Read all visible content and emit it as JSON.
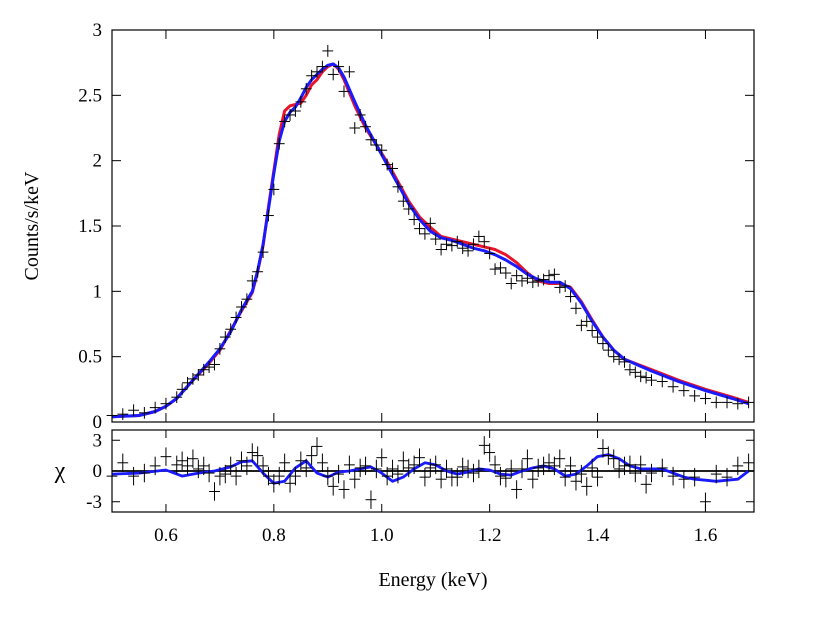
{
  "chart_data": [
    {
      "type": "line",
      "panel": "spectrum",
      "xlabel": "Energy (keV)",
      "ylabel": "Counts/s/keV",
      "xlim": [
        0.5,
        1.69
      ],
      "ylim": [
        0,
        3
      ],
      "xticks": [
        0.6,
        0.8,
        1.0,
        1.2,
        1.4,
        1.6
      ],
      "xtick_labels": [
        "0.6",
        "0.8",
        "1.0",
        "1.2",
        "1.4",
        "1.6"
      ],
      "yticks": [
        0,
        0.5,
        1,
        1.5,
        2,
        2.5,
        3
      ],
      "ytick_labels": [
        "0",
        "0.5",
        "1",
        "1.5",
        "2",
        "2.5",
        "3"
      ],
      "grid": false,
      "colors": {
        "data": "#000000",
        "model_red": "#e8142a",
        "model_blue": "#1a1aff"
      },
      "points": {
        "x": [
          0.5,
          0.52,
          0.54,
          0.56,
          0.58,
          0.6,
          0.62,
          0.63,
          0.64,
          0.65,
          0.66,
          0.67,
          0.68,
          0.69,
          0.7,
          0.71,
          0.72,
          0.73,
          0.74,
          0.75,
          0.76,
          0.77,
          0.78,
          0.79,
          0.8,
          0.81,
          0.82,
          0.83,
          0.84,
          0.85,
          0.86,
          0.87,
          0.88,
          0.89,
          0.9,
          0.91,
          0.92,
          0.93,
          0.94,
          0.95,
          0.96,
          0.97,
          0.98,
          0.99,
          1.0,
          1.01,
          1.02,
          1.03,
          1.04,
          1.05,
          1.06,
          1.07,
          1.08,
          1.09,
          1.1,
          1.11,
          1.12,
          1.13,
          1.14,
          1.15,
          1.16,
          1.17,
          1.18,
          1.19,
          1.2,
          1.21,
          1.22,
          1.23,
          1.24,
          1.25,
          1.26,
          1.27,
          1.28,
          1.29,
          1.3,
          1.31,
          1.32,
          1.33,
          1.34,
          1.35,
          1.36,
          1.37,
          1.38,
          1.39,
          1.4,
          1.41,
          1.42,
          1.43,
          1.44,
          1.45,
          1.46,
          1.47,
          1.48,
          1.49,
          1.5,
          1.52,
          1.54,
          1.56,
          1.58,
          1.6,
          1.62,
          1.64,
          1.66,
          1.68
        ],
        "y": [
          0.05,
          0.06,
          0.09,
          0.07,
          0.11,
          0.14,
          0.19,
          0.25,
          0.3,
          0.33,
          0.36,
          0.4,
          0.42,
          0.44,
          0.56,
          0.65,
          0.71,
          0.8,
          0.88,
          0.94,
          1.08,
          1.15,
          1.3,
          1.58,
          1.78,
          2.13,
          2.3,
          2.35,
          2.38,
          2.45,
          2.55,
          2.65,
          2.68,
          2.72,
          2.84,
          2.66,
          2.72,
          2.53,
          2.68,
          2.25,
          2.35,
          2.26,
          2.16,
          2.12,
          2.08,
          1.97,
          1.94,
          1.8,
          1.69,
          1.63,
          1.55,
          1.48,
          1.44,
          1.52,
          1.4,
          1.32,
          1.36,
          1.35,
          1.38,
          1.33,
          1.31,
          1.36,
          1.42,
          1.38,
          1.29,
          1.17,
          1.18,
          1.14,
          1.06,
          1.12,
          1.08,
          1.1,
          1.07,
          1.08,
          1.09,
          1.12,
          1.13,
          1.03,
          1.04,
          0.96,
          0.87,
          0.74,
          0.77,
          0.7,
          0.65,
          0.6,
          0.55,
          0.5,
          0.48,
          0.46,
          0.4,
          0.38,
          0.35,
          0.34,
          0.32,
          0.31,
          0.27,
          0.24,
          0.2,
          0.18,
          0.15,
          0.15,
          0.14,
          0.15
        ],
        "yerr": 0.045,
        "xerr": 0.01
      },
      "series": [
        {
          "color": "red",
          "x": [
            0.5,
            0.55,
            0.58,
            0.6,
            0.62,
            0.65,
            0.68,
            0.7,
            0.72,
            0.74,
            0.76,
            0.77,
            0.78,
            0.79,
            0.8,
            0.81,
            0.82,
            0.83,
            0.84,
            0.85,
            0.86,
            0.87,
            0.88,
            0.89,
            0.9,
            0.91,
            0.92,
            0.93,
            0.95,
            0.97,
            0.99,
            1.01,
            1.03,
            1.05,
            1.07,
            1.09,
            1.11,
            1.13,
            1.15,
            1.17,
            1.19,
            1.21,
            1.23,
            1.25,
            1.27,
            1.29,
            1.31,
            1.33,
            1.35,
            1.37,
            1.39,
            1.41,
            1.43,
            1.45,
            1.5,
            1.55,
            1.6,
            1.65,
            1.68
          ],
          "y": [
            0.04,
            0.05,
            0.08,
            0.12,
            0.18,
            0.32,
            0.45,
            0.55,
            0.7,
            0.85,
            0.99,
            1.15,
            1.35,
            1.65,
            1.92,
            2.2,
            2.38,
            2.42,
            2.43,
            2.44,
            2.5,
            2.58,
            2.62,
            2.68,
            2.72,
            2.74,
            2.7,
            2.62,
            2.42,
            2.25,
            2.12,
            1.99,
            1.84,
            1.69,
            1.57,
            1.49,
            1.42,
            1.4,
            1.38,
            1.36,
            1.34,
            1.32,
            1.28,
            1.22,
            1.14,
            1.08,
            1.06,
            1.06,
            1.03,
            0.92,
            0.78,
            0.65,
            0.55,
            0.48,
            0.4,
            0.32,
            0.25,
            0.19,
            0.15
          ]
        },
        {
          "color": "blue",
          "x": [
            0.5,
            0.55,
            0.58,
            0.6,
            0.62,
            0.65,
            0.68,
            0.7,
            0.72,
            0.74,
            0.76,
            0.77,
            0.78,
            0.79,
            0.8,
            0.81,
            0.82,
            0.83,
            0.84,
            0.85,
            0.86,
            0.87,
            0.88,
            0.89,
            0.9,
            0.91,
            0.92,
            0.93,
            0.95,
            0.97,
            0.99,
            1.01,
            1.03,
            1.05,
            1.07,
            1.09,
            1.11,
            1.13,
            1.15,
            1.17,
            1.19,
            1.21,
            1.23,
            1.25,
            1.27,
            1.29,
            1.31,
            1.33,
            1.35,
            1.37,
            1.39,
            1.41,
            1.43,
            1.45,
            1.5,
            1.55,
            1.6,
            1.65,
            1.68
          ],
          "y": [
            0.04,
            0.05,
            0.08,
            0.12,
            0.18,
            0.32,
            0.46,
            0.56,
            0.69,
            0.86,
            1.0,
            1.16,
            1.36,
            1.63,
            1.9,
            2.15,
            2.3,
            2.37,
            2.41,
            2.48,
            2.56,
            2.62,
            2.66,
            2.7,
            2.73,
            2.74,
            2.71,
            2.64,
            2.45,
            2.27,
            2.12,
            1.97,
            1.82,
            1.67,
            1.55,
            1.46,
            1.41,
            1.39,
            1.36,
            1.33,
            1.31,
            1.28,
            1.24,
            1.19,
            1.13,
            1.09,
            1.07,
            1.07,
            1.02,
            0.91,
            0.77,
            0.65,
            0.55,
            0.48,
            0.39,
            0.31,
            0.24,
            0.18,
            0.14
          ]
        }
      ]
    },
    {
      "type": "line",
      "panel": "residuals",
      "xlabel": "Energy (keV)",
      "ylabel": "χ",
      "xlim": [
        0.5,
        1.69
      ],
      "ylim": [
        -4,
        4
      ],
      "yticks": [
        -3,
        0,
        3
      ],
      "ytick_labels": [
        "-3",
        "0",
        "3"
      ],
      "zero_line": true,
      "points": {
        "x": [
          0.5,
          0.52,
          0.54,
          0.56,
          0.58,
          0.6,
          0.62,
          0.63,
          0.64,
          0.65,
          0.66,
          0.67,
          0.68,
          0.69,
          0.7,
          0.71,
          0.72,
          0.73,
          0.74,
          0.75,
          0.76,
          0.77,
          0.78,
          0.79,
          0.8,
          0.81,
          0.82,
          0.83,
          0.84,
          0.85,
          0.86,
          0.87,
          0.88,
          0.89,
          0.9,
          0.91,
          0.92,
          0.93,
          0.94,
          0.95,
          0.96,
          0.97,
          0.98,
          0.99,
          1.0,
          1.01,
          1.02,
          1.03,
          1.04,
          1.05,
          1.06,
          1.07,
          1.08,
          1.09,
          1.1,
          1.11,
          1.12,
          1.13,
          1.14,
          1.15,
          1.16,
          1.17,
          1.18,
          1.19,
          1.2,
          1.21,
          1.22,
          1.23,
          1.24,
          1.25,
          1.26,
          1.27,
          1.28,
          1.29,
          1.3,
          1.31,
          1.32,
          1.33,
          1.34,
          1.35,
          1.36,
          1.37,
          1.38,
          1.39,
          1.4,
          1.41,
          1.42,
          1.43,
          1.44,
          1.45,
          1.46,
          1.47,
          1.48,
          1.49,
          1.5,
          1.52,
          1.54,
          1.56,
          1.58,
          1.6,
          1.62,
          1.64,
          1.66,
          1.68
        ],
        "y": [
          -0.5,
          0.8,
          -0.5,
          -0.2,
          0.5,
          1.4,
          0.6,
          1.0,
          0.5,
          1.2,
          0.2,
          0.5,
          -0.2,
          -2.0,
          -0.5,
          -0.3,
          0.5,
          -0.5,
          1.0,
          0.5,
          1.8,
          1.5,
          0.5,
          -0.5,
          -1.2,
          -0.5,
          0.8,
          -1.2,
          -0.5,
          1.0,
          0.3,
          1.5,
          2.4,
          0.8,
          -0.5,
          -1.5,
          -0.3,
          -1.8,
          0.6,
          -0.8,
          0.3,
          0.5,
          -2.8,
          0.2,
          1.3,
          -0.5,
          0.2,
          -0.3,
          1.0,
          0.3,
          0.6,
          1.3,
          -0.6,
          0.3,
          0.6,
          -0.8,
          0.2,
          -0.6,
          -0.6,
          0.4,
          0.2,
          -0.2,
          0.2,
          2.5,
          1.8,
          0.6,
          -0.5,
          -0.7,
          0.2,
          -1.8,
          0.2,
          1.2,
          -0.8,
          0.3,
          0.5,
          0.8,
          0.5,
          1.2,
          -0.6,
          0.5,
          -1.0,
          -0.3,
          -1.5,
          0.3,
          -0.6,
          2.2,
          1.5,
          1.2,
          0.2,
          0.5,
          0.6,
          -0.2,
          0.6,
          -1.3,
          -0.2,
          0.3,
          -0.5,
          -0.8,
          -0.6,
          -3.0,
          -0.3,
          -0.6,
          0.5,
          0.8
        ],
        "yerr": 0.9,
        "xerr": 0.01
      },
      "series": [
        {
          "color": "blue",
          "x": [
            0.5,
            0.55,
            0.6,
            0.63,
            0.66,
            0.69,
            0.72,
            0.74,
            0.76,
            0.78,
            0.8,
            0.82,
            0.84,
            0.86,
            0.88,
            0.9,
            0.92,
            0.94,
            0.96,
            0.98,
            1.0,
            1.02,
            1.04,
            1.06,
            1.08,
            1.1,
            1.12,
            1.14,
            1.16,
            1.18,
            1.2,
            1.22,
            1.24,
            1.26,
            1.28,
            1.3,
            1.32,
            1.34,
            1.36,
            1.38,
            1.4,
            1.42,
            1.44,
            1.46,
            1.48,
            1.5,
            1.52,
            1.54,
            1.56,
            1.58,
            1.6,
            1.62,
            1.64,
            1.66,
            1.68
          ],
          "y": [
            -0.3,
            -0.2,
            0.1,
            -0.5,
            -0.2,
            0.0,
            0.4,
            0.9,
            1.0,
            -0.2,
            -1.2,
            -1.0,
            0.3,
            1.0,
            -0.2,
            -0.6,
            -0.1,
            0.0,
            0.2,
            0.4,
            -0.2,
            -1.0,
            -0.6,
            0.2,
            0.8,
            0.6,
            0.0,
            -0.3,
            -0.1,
            0.2,
            0.1,
            -0.3,
            -0.4,
            0.0,
            0.3,
            0.5,
            0.2,
            -0.5,
            -0.3,
            0.5,
            1.4,
            1.6,
            1.2,
            0.5,
            0.2,
            0.2,
            0.2,
            -0.2,
            -0.6,
            -0.8,
            -0.9,
            -1.0,
            -0.9,
            -0.8,
            0.0
          ]
        }
      ]
    }
  ]
}
